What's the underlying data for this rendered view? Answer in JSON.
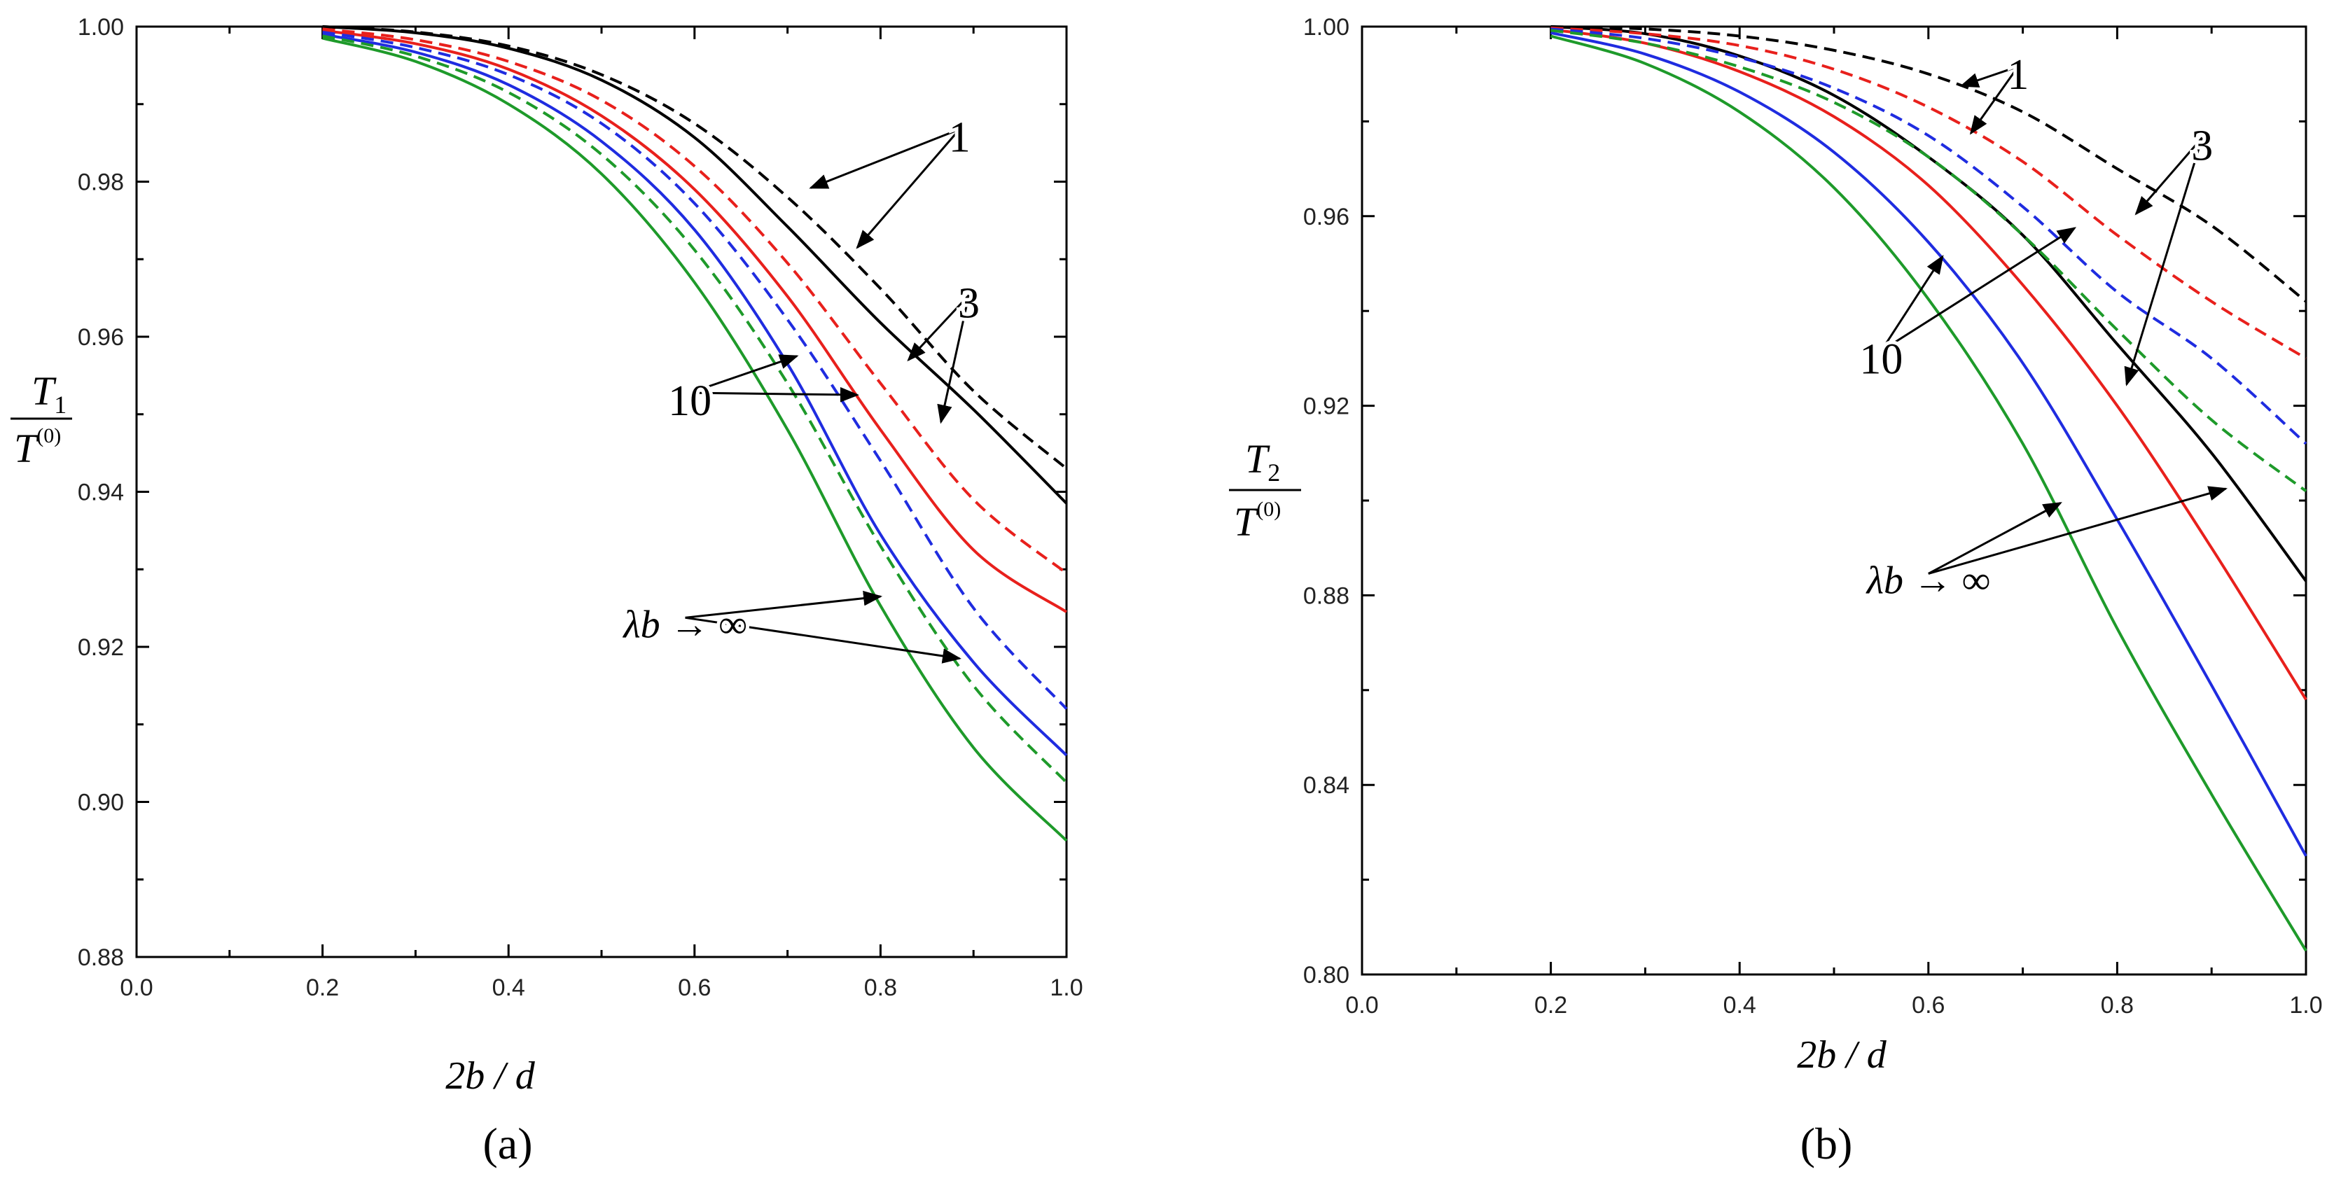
{
  "colors": {
    "1": "#000000",
    "3": "#e8201c",
    "10": "#1f2ce0",
    "inf": "#1e9a2a"
  },
  "chart_data": [
    {
      "type": "line",
      "panel_label": "(a)",
      "xlabel": "2b / d",
      "ylabel": "T1 / T(0)",
      "xlim": [
        0.0,
        1.0
      ],
      "ylim": [
        0.88,
        1.0
      ],
      "xticks": [
        "0.0",
        "0.2",
        "0.4",
        "0.6",
        "0.8",
        "1.0"
      ],
      "yticks": [
        "0.88",
        "0.90",
        "0.92",
        "0.94",
        "0.96",
        "0.98",
        "1.00"
      ],
      "x": [
        0.2,
        0.3,
        0.4,
        0.5,
        0.6,
        0.7,
        0.8,
        0.9,
        1.0
      ],
      "series": [
        {
          "group": "1",
          "style": "solid",
          "values": [
            1.0,
            0.9992,
            0.9972,
            0.9931,
            0.9857,
            0.9742,
            0.9618,
            0.9506,
            0.9385
          ]
        },
        {
          "group": "1",
          "style": "dashed",
          "values": [
            1.0,
            0.9993,
            0.9975,
            0.9938,
            0.9875,
            0.978,
            0.9662,
            0.953,
            0.943
          ]
        },
        {
          "group": "3",
          "style": "solid",
          "values": [
            0.9995,
            0.9978,
            0.9945,
            0.9885,
            0.979,
            0.9652,
            0.948,
            0.9325,
            0.9245
          ]
        },
        {
          "group": "3",
          "style": "dashed",
          "values": [
            0.9997,
            0.9983,
            0.9955,
            0.9905,
            0.982,
            0.9695,
            0.954,
            0.939,
            0.9295
          ]
        },
        {
          "group": "10",
          "style": "solid",
          "values": [
            0.999,
            0.9967,
            0.9925,
            0.9852,
            0.9738,
            0.9565,
            0.9345,
            0.918,
            0.906
          ]
        },
        {
          "group": "10",
          "style": "dashed",
          "values": [
            0.9993,
            0.9973,
            0.9938,
            0.9875,
            0.9772,
            0.9622,
            0.944,
            0.925,
            0.912
          ]
        },
        {
          "group": "inf",
          "style": "solid",
          "values": [
            0.9985,
            0.9955,
            0.99,
            0.981,
            0.967,
            0.948,
            0.9253,
            0.907,
            0.895
          ]
        },
        {
          "group": "inf",
          "style": "dashed",
          "values": [
            0.9988,
            0.9962,
            0.9915,
            0.9835,
            0.9712,
            0.954,
            0.933,
            0.915,
            0.9025
          ]
        }
      ],
      "annotations": [
        {
          "text": "1",
          "tx": 0.885,
          "ty": 0.9855,
          "arrows": [
            [
              0.725,
              0.9792
            ],
            [
              0.775,
              0.9715
            ]
          ]
        },
        {
          "text": "3",
          "tx": 0.895,
          "ty": 0.9641,
          "arrows": [
            [
              0.83,
              0.957
            ],
            [
              0.865,
              0.949
            ]
          ]
        },
        {
          "text": "10",
          "tx": 0.595,
          "ty": 0.9515,
          "arrows": [
            [
              0.71,
              0.9575
            ],
            [
              0.775,
              0.9525
            ]
          ]
        },
        {
          "text": "λb → ∞",
          "tx": 0.59,
          "ty": 0.9225,
          "arrows": [
            [
              0.8,
              0.9265
            ],
            [
              0.885,
              0.9185
            ]
          ]
        }
      ]
    },
    {
      "type": "line",
      "panel_label": "(b)",
      "xlabel": "2b / d",
      "ylabel": "T2 / T(0)",
      "xlim": [
        0.0,
        1.0
      ],
      "ylim": [
        0.8,
        1.0
      ],
      "xticks": [
        "0.0",
        "0.2",
        "0.4",
        "0.6",
        "0.8",
        "1.0"
      ],
      "yticks": [
        "0.80",
        "0.84",
        "0.88",
        "0.92",
        "0.96",
        "1.00"
      ],
      "x": [
        0.2,
        0.3,
        0.4,
        0.5,
        0.6,
        0.7,
        0.8,
        0.9,
        1.0
      ],
      "series": [
        {
          "group": "1",
          "style": "solid",
          "values": [
            1.0,
            0.9985,
            0.9938,
            0.9855,
            0.9725,
            0.956,
            0.933,
            0.91,
            0.883
          ]
        },
        {
          "group": "1",
          "style": "dashed",
          "values": [
            1.0,
            0.9995,
            0.998,
            0.995,
            0.99,
            0.982,
            0.97,
            0.958,
            0.942
          ]
        },
        {
          "group": "3",
          "style": "solid",
          "values": [
            0.9994,
            0.9965,
            0.9905,
            0.981,
            0.9665,
            0.9455,
            0.92,
            0.89,
            0.858
          ]
        },
        {
          "group": "3",
          "style": "dashed",
          "values": [
            0.9997,
            0.9985,
            0.996,
            0.991,
            0.983,
            0.9715,
            0.956,
            0.942,
            0.93
          ]
        },
        {
          "group": "10",
          "style": "solid",
          "values": [
            0.9987,
            0.9942,
            0.9862,
            0.9735,
            0.9545,
            0.929,
            0.896,
            0.861,
            0.825
          ]
        },
        {
          "group": "10",
          "style": "dashed",
          "values": [
            0.9995,
            0.9975,
            0.9935,
            0.987,
            0.977,
            0.962,
            0.944,
            0.93,
            0.912
          ]
        },
        {
          "group": "inf",
          "style": "solid",
          "values": [
            0.998,
            0.9922,
            0.982,
            0.966,
            0.9425,
            0.912,
            0.873,
            0.838,
            0.805
          ]
        },
        {
          "group": "inf",
          "style": "dashed",
          "values": [
            0.9992,
            0.9965,
            0.9915,
            0.984,
            0.9725,
            0.956,
            0.936,
            0.917,
            0.902
          ]
        }
      ],
      "annotations": [
        {
          "text": "1",
          "tx": 0.695,
          "ty": 0.9895,
          "arrows": [
            [
              0.635,
              0.9875
            ],
            [
              0.645,
              0.9775
            ]
          ]
        },
        {
          "text": "3",
          "tx": 0.89,
          "ty": 0.9745,
          "arrows": [
            [
              0.82,
              0.9605
            ],
            [
              0.81,
              0.9245
            ]
          ]
        },
        {
          "text": "10",
          "tx": 0.55,
          "ty": 0.9295,
          "arrows": [
            [
              0.615,
              0.9515
            ],
            [
              0.755,
              0.9575
            ]
          ]
        },
        {
          "text": "λb → ∞",
          "tx": 0.6,
          "ty": 0.8825,
          "arrows": [
            [
              0.74,
              0.8995
            ],
            [
              0.915,
              0.9025
            ]
          ]
        }
      ]
    }
  ]
}
